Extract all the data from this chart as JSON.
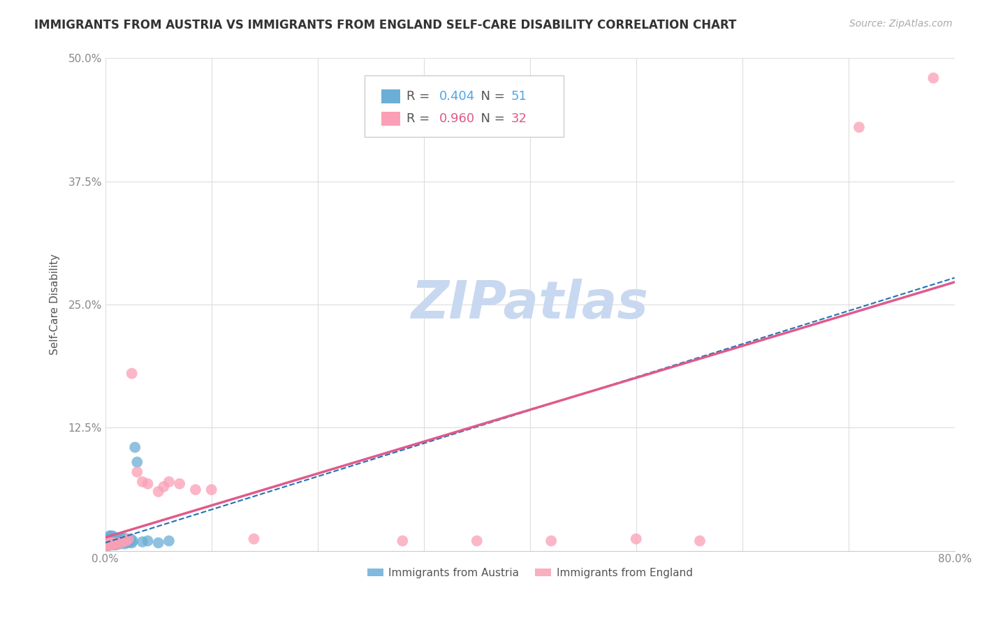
{
  "title": "IMMIGRANTS FROM AUSTRIA VS IMMIGRANTS FROM ENGLAND SELF-CARE DISABILITY CORRELATION CHART",
  "source": "Source: ZipAtlas.com",
  "ylabel": "Self-Care Disability",
  "xlim": [
    0.0,
    0.8
  ],
  "ylim": [
    0.0,
    0.5
  ],
  "xticks": [
    0.0,
    0.1,
    0.2,
    0.3,
    0.4,
    0.5,
    0.6,
    0.7,
    0.8
  ],
  "yticks": [
    0.0,
    0.125,
    0.25,
    0.375,
    0.5
  ],
  "xticklabels": [
    "0.0%",
    "",
    "",
    "",
    "",
    "",
    "",
    "",
    "80.0%"
  ],
  "yticklabels": [
    "",
    "12.5%",
    "25.0%",
    "37.5%",
    "50.0%"
  ],
  "austria_color": "#6baed6",
  "england_color": "#fa9fb5",
  "austria_line_color": "#2171b5",
  "england_line_color": "#e05a8a",
  "grid_color": "#dddddd",
  "background_color": "#ffffff",
  "watermark": "ZIPatlas",
  "watermark_color": "#c8d8f0",
  "legend_austria_r": "0.404",
  "legend_austria_n": "51",
  "legend_england_r": "0.960",
  "legend_england_n": "32",
  "austria_x": [
    0.001,
    0.002,
    0.002,
    0.003,
    0.003,
    0.003,
    0.004,
    0.004,
    0.004,
    0.005,
    0.005,
    0.005,
    0.006,
    0.006,
    0.007,
    0.007,
    0.007,
    0.008,
    0.008,
    0.009,
    0.009,
    0.01,
    0.01,
    0.011,
    0.011,
    0.012,
    0.012,
    0.013,
    0.013,
    0.014,
    0.014,
    0.015,
    0.015,
    0.016,
    0.017,
    0.018,
    0.018,
    0.019,
    0.02,
    0.021,
    0.022,
    0.023,
    0.024,
    0.025,
    0.026,
    0.028,
    0.03,
    0.035,
    0.04,
    0.05,
    0.06
  ],
  "austria_y": [
    0.005,
    0.008,
    0.01,
    0.005,
    0.008,
    0.012,
    0.006,
    0.01,
    0.015,
    0.007,
    0.01,
    0.015,
    0.008,
    0.012,
    0.006,
    0.01,
    0.015,
    0.007,
    0.012,
    0.008,
    0.013,
    0.006,
    0.011,
    0.008,
    0.013,
    0.007,
    0.012,
    0.008,
    0.013,
    0.007,
    0.012,
    0.008,
    0.013,
    0.009,
    0.01,
    0.007,
    0.013,
    0.009,
    0.01,
    0.008,
    0.011,
    0.009,
    0.012,
    0.008,
    0.01,
    0.105,
    0.09,
    0.009,
    0.01,
    0.008,
    0.01
  ],
  "england_x": [
    0.001,
    0.002,
    0.003,
    0.004,
    0.005,
    0.006,
    0.007,
    0.008,
    0.01,
    0.012,
    0.015,
    0.018,
    0.02,
    0.022,
    0.025,
    0.03,
    0.035,
    0.04,
    0.05,
    0.055,
    0.06,
    0.07,
    0.085,
    0.1,
    0.14,
    0.28,
    0.35,
    0.42,
    0.5,
    0.56,
    0.71,
    0.78
  ],
  "england_y": [
    0.004,
    0.006,
    0.008,
    0.006,
    0.008,
    0.006,
    0.008,
    0.007,
    0.008,
    0.007,
    0.008,
    0.01,
    0.01,
    0.012,
    0.18,
    0.08,
    0.07,
    0.068,
    0.06,
    0.065,
    0.07,
    0.068,
    0.062,
    0.062,
    0.012,
    0.01,
    0.01,
    0.01,
    0.012,
    0.01,
    0.43,
    0.48
  ]
}
